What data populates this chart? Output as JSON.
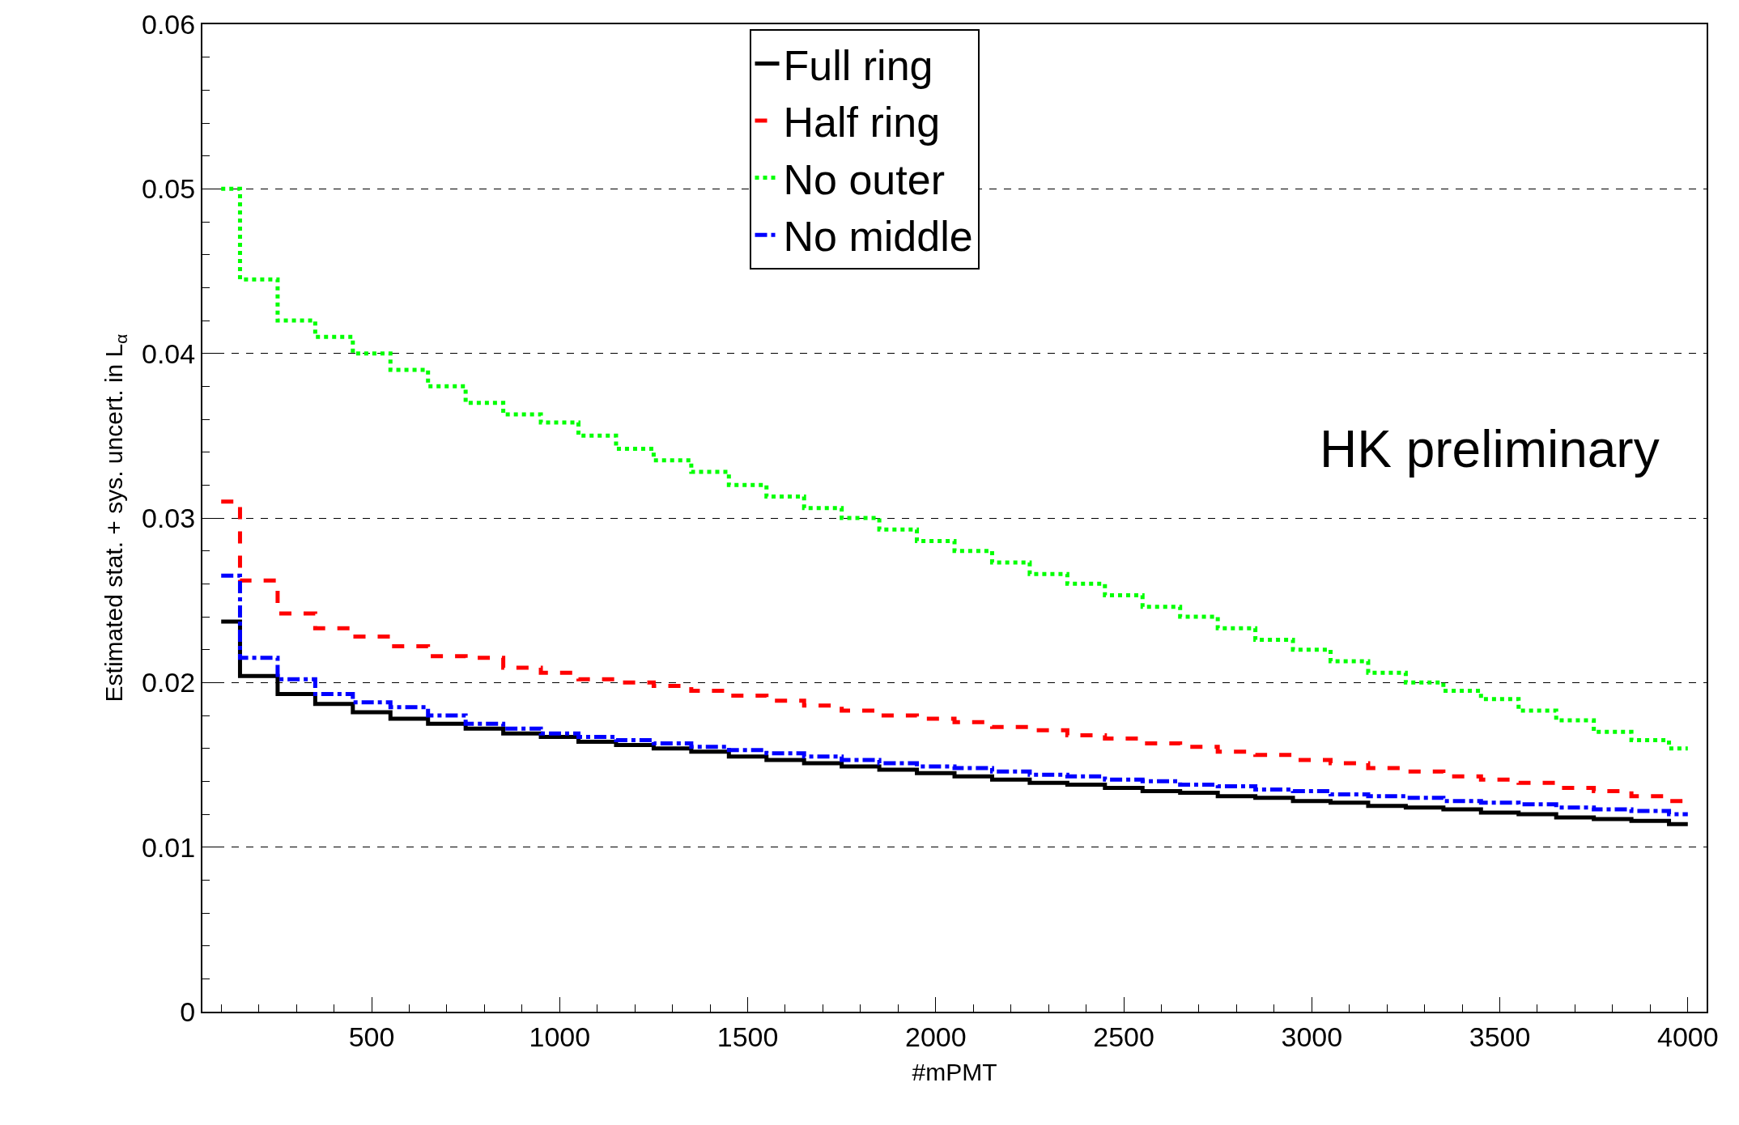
{
  "chart_data": {
    "type": "step",
    "xlabel": "#mPMT",
    "ylabel": "Estimated stat. + sys. uncert. in L$_{α}$",
    "x": [
      100,
      200,
      300,
      400,
      500,
      600,
      700,
      800,
      900,
      1000,
      1100,
      1200,
      1300,
      1400,
      1500,
      1600,
      1700,
      1800,
      1900,
      2000,
      2100,
      2200,
      2300,
      2400,
      2500,
      2600,
      2700,
      2800,
      2900,
      3000,
      3100,
      3200,
      3300,
      3400,
      3500,
      3600,
      3700,
      3800,
      3900,
      4000
    ],
    "series": [
      {
        "name": "Full ring",
        "color": "#000000",
        "line_style": "solid",
        "values": [
          0.0237,
          0.0204,
          0.0193,
          0.0187,
          0.0182,
          0.0178,
          0.0175,
          0.0172,
          0.0169,
          0.0167,
          0.0164,
          0.0162,
          0.016,
          0.0158,
          0.0155,
          0.0153,
          0.0151,
          0.0149,
          0.0147,
          0.0145,
          0.0143,
          0.0141,
          0.0139,
          0.0138,
          0.0136,
          0.0134,
          0.0133,
          0.0131,
          0.013,
          0.0128,
          0.0127,
          0.0125,
          0.0124,
          0.0123,
          0.0121,
          0.012,
          0.0118,
          0.0117,
          0.0116,
          0.0114
        ]
      },
      {
        "name": "Half ring",
        "color": "#ff0000",
        "line_style": "dashed",
        "values": [
          0.031,
          0.0262,
          0.0242,
          0.0233,
          0.0228,
          0.0222,
          0.0216,
          0.0215,
          0.0209,
          0.0206,
          0.0202,
          0.02,
          0.0198,
          0.0195,
          0.0192,
          0.0189,
          0.0186,
          0.0183,
          0.018,
          0.0178,
          0.0176,
          0.0173,
          0.0171,
          0.0168,
          0.0166,
          0.0163,
          0.0161,
          0.0158,
          0.0156,
          0.0153,
          0.0151,
          0.0148,
          0.0146,
          0.0143,
          0.0141,
          0.0139,
          0.0136,
          0.0134,
          0.0131,
          0.0128
        ]
      },
      {
        "name": "No outer",
        "color": "#00ff00",
        "line_style": "dotted",
        "values": [
          0.05,
          0.0445,
          0.042,
          0.041,
          0.04,
          0.039,
          0.038,
          0.037,
          0.0363,
          0.0358,
          0.035,
          0.0342,
          0.0335,
          0.0328,
          0.032,
          0.0313,
          0.0306,
          0.03,
          0.0293,
          0.0286,
          0.028,
          0.0273,
          0.0266,
          0.026,
          0.0253,
          0.0246,
          0.024,
          0.0233,
          0.0226,
          0.022,
          0.0213,
          0.0206,
          0.02,
          0.0195,
          0.019,
          0.0183,
          0.0177,
          0.017,
          0.0165,
          0.016
        ]
      },
      {
        "name": "No middle",
        "color": "#0000ff",
        "line_style": "dashdot",
        "values": [
          0.0265,
          0.0215,
          0.0202,
          0.0193,
          0.0188,
          0.0185,
          0.018,
          0.0175,
          0.0172,
          0.0169,
          0.0167,
          0.0165,
          0.0163,
          0.0161,
          0.0159,
          0.0157,
          0.0155,
          0.0153,
          0.0151,
          0.0149,
          0.0148,
          0.0146,
          0.0144,
          0.0143,
          0.0141,
          0.014,
          0.0138,
          0.0137,
          0.0135,
          0.0134,
          0.0132,
          0.0131,
          0.013,
          0.0128,
          0.0127,
          0.0126,
          0.0124,
          0.0123,
          0.0122,
          0.012
        ]
      }
    ],
    "xlim": [
      50,
      4050
    ],
    "xticks": [
      500,
      1000,
      1500,
      2000,
      2500,
      3000,
      3500,
      4000
    ],
    "ylim": [
      0,
      0.06
    ],
    "yticks": [
      {
        "value": 0,
        "label": "0"
      },
      {
        "value": 0.01,
        "label": "0.01"
      },
      {
        "value": 0.02,
        "label": "0.02"
      },
      {
        "value": 0.03,
        "label": "0.03"
      },
      {
        "value": 0.04,
        "label": "0.04"
      },
      {
        "value": 0.05,
        "label": "0.05"
      },
      {
        "value": 0.06,
        "label": "0.06"
      }
    ],
    "grid": "y",
    "legend": "top",
    "annotations": [
      "HK preliminary"
    ]
  }
}
